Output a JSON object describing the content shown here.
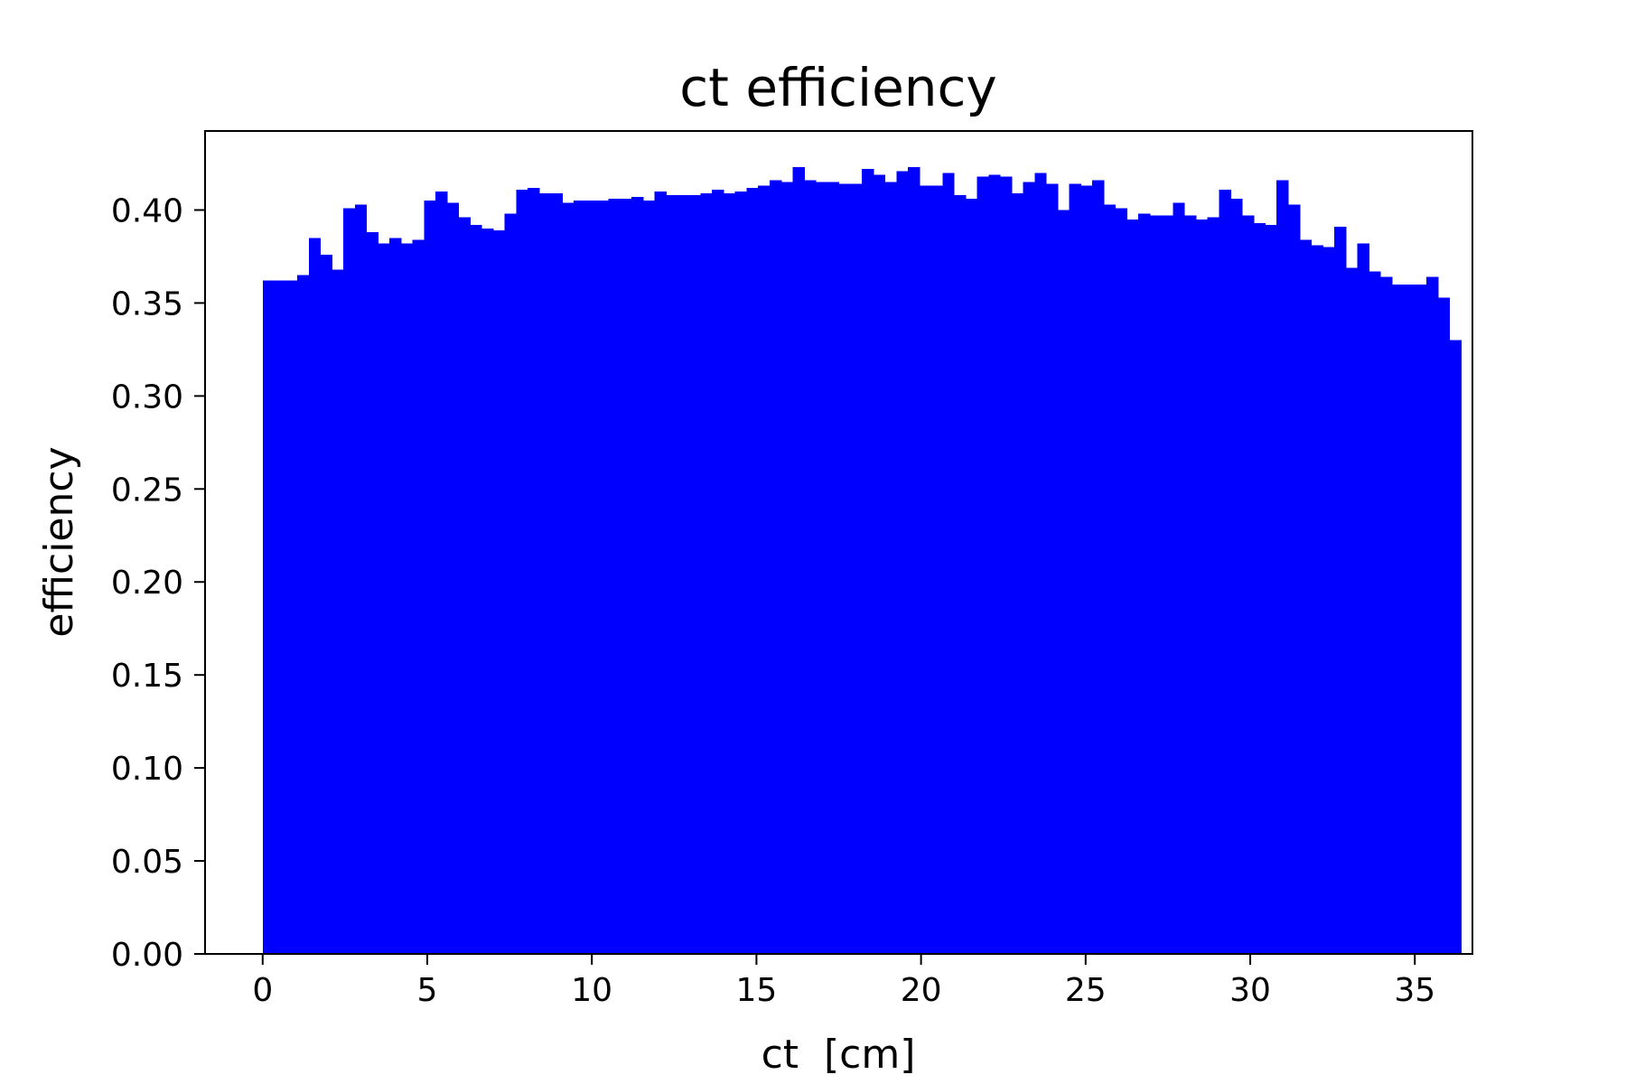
{
  "chart_data": {
    "type": "bar",
    "title": "ct efficiency",
    "xlabel": "ct  [cm]",
    "ylabel": "efficiency",
    "xlim": [
      -1.75,
      36.75
    ],
    "ylim": [
      0.0,
      0.4425
    ],
    "x_ticks": [
      0,
      5,
      10,
      15,
      20,
      25,
      30,
      35
    ],
    "y_ticks": [
      0.0,
      0.05,
      0.1,
      0.15,
      0.2,
      0.25,
      0.3,
      0.35,
      0.4
    ],
    "x_tick_labels": [
      "0",
      "5",
      "10",
      "15",
      "20",
      "25",
      "30",
      "35"
    ],
    "y_tick_labels": [
      "0.00",
      "0.05",
      "0.10",
      "0.15",
      "0.20",
      "0.25",
      "0.30",
      "0.35",
      "0.40"
    ],
    "bin_edges_start": 0,
    "bin_width": 0.35,
    "values": [
      0.362,
      0.362,
      0.362,
      0.365,
      0.385,
      0.376,
      0.368,
      0.401,
      0.403,
      0.388,
      0.382,
      0.385,
      0.382,
      0.384,
      0.405,
      0.41,
      0.404,
      0.396,
      0.392,
      0.39,
      0.389,
      0.398,
      0.411,
      0.412,
      0.409,
      0.409,
      0.404,
      0.405,
      0.405,
      0.405,
      0.406,
      0.406,
      0.407,
      0.405,
      0.41,
      0.408,
      0.408,
      0.408,
      0.409,
      0.411,
      0.409,
      0.41,
      0.412,
      0.413,
      0.416,
      0.415,
      0.423,
      0.416,
      0.415,
      0.415,
      0.414,
      0.414,
      0.422,
      0.419,
      0.415,
      0.421,
      0.423,
      0.413,
      0.413,
      0.42,
      0.408,
      0.406,
      0.418,
      0.419,
      0.418,
      0.409,
      0.415,
      0.42,
      0.414,
      0.4,
      0.414,
      0.413,
      0.416,
      0.403,
      0.401,
      0.395,
      0.398,
      0.397,
      0.397,
      0.404,
      0.397,
      0.395,
      0.396,
      0.411,
      0.406,
      0.397,
      0.393,
      0.392,
      0.416,
      0.403,
      0.384,
      0.381,
      0.38,
      0.391,
      0.369,
      0.382,
      0.367,
      0.364,
      0.36,
      0.36,
      0.36,
      0.364,
      0.353,
      0.33
    ],
    "bar_color": "#0000ff",
    "grid": false,
    "legend": "none"
  }
}
